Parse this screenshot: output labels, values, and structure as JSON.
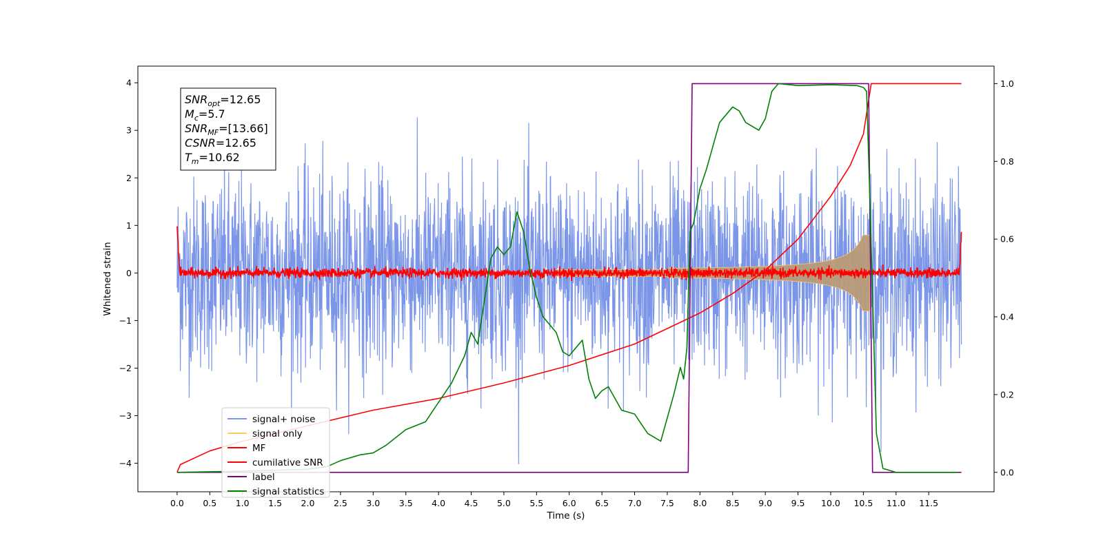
{
  "chart_data": {
    "type": "line",
    "xlabel": "Time (s)",
    "ylabel": "Whitened strain",
    "xlim": [
      -0.6,
      12.5
    ],
    "ylim": [
      -4.6,
      4.35
    ],
    "y2lim": [
      -0.05,
      1.045
    ],
    "x_ticks": [
      "0.0",
      "0.5",
      "1.0",
      "1.5",
      "2.0",
      "2.5",
      "3.0",
      "3.5",
      "4.0",
      "4.5",
      "5.0",
      "5.5",
      "6.0",
      "6.5",
      "7.0",
      "7.5",
      "8.0",
      "8.5",
      "9.0",
      "9.5",
      "10.0",
      "10.5",
      "11.0",
      "11.5"
    ],
    "y_ticks": [
      "4",
      "3",
      "2",
      "1",
      "0",
      "−1",
      "−2",
      "−3",
      "−4"
    ],
    "y2_ticks": [
      "0.0",
      "0.2",
      "0.4",
      "0.6",
      "0.8",
      "1.0"
    ],
    "grid": false,
    "legend_position": "lower-left",
    "info_box": [
      {
        "base": "SNR",
        "sub": "opt",
        "value": "=12.65"
      },
      {
        "base": "M",
        "sub": "c",
        "value": "=5.7"
      },
      {
        "base": "SNR",
        "sub": "MF",
        "value": "=[13.66]"
      },
      {
        "base": "CSNR",
        "sub": "",
        "value": "=12.65"
      },
      {
        "base": "T",
        "sub": "m",
        "value": "=10.62"
      }
    ],
    "series": [
      {
        "name": "signal+ noise",
        "color": "#7b96e8",
        "axis": "left",
        "style": "noise",
        "duration": 12.0,
        "amplitude_std": 1.0
      },
      {
        "name": "signal only",
        "color": "#ffc664",
        "axis": "left",
        "style": "chirp",
        "t_start": 7.5,
        "t_merger": 10.6,
        "max_amplitude": 0.75
      },
      {
        "name": "MF",
        "color": "#ff0000",
        "axis": "left",
        "style": "mf",
        "peak_t": 0.0,
        "peak_value": 1.0,
        "baseline_std": 0.05
      },
      {
        "name": "cumilative SNR",
        "color": "#ff0000",
        "axis": "right",
        "x": [
          0.0,
          0.05,
          0.5,
          1.0,
          2.0,
          3.0,
          4.0,
          5.0,
          6.0,
          7.0,
          7.5,
          8.0,
          8.5,
          9.0,
          9.5,
          10.0,
          10.3,
          10.5,
          10.62,
          12.0
        ],
        "y": [
          0.0,
          0.02,
          0.055,
          0.08,
          0.12,
          0.16,
          0.19,
          0.23,
          0.275,
          0.33,
          0.37,
          0.41,
          0.46,
          0.52,
          0.6,
          0.71,
          0.79,
          0.87,
          1.0,
          1.0
        ]
      },
      {
        "name": "label",
        "color": "#800080",
        "axis": "right",
        "x": [
          0.0,
          7.82,
          7.88,
          10.58,
          10.64,
          12.0
        ],
        "y": [
          0.0,
          0.0,
          1.0,
          1.0,
          0.0,
          0.0
        ]
      },
      {
        "name": "signal statistics",
        "color": "#008000",
        "axis": "right",
        "x": [
          0.0,
          1.0,
          2.0,
          2.3,
          2.5,
          2.7,
          2.8,
          3.0,
          3.2,
          3.5,
          3.8,
          4.0,
          4.2,
          4.4,
          4.5,
          4.6,
          4.8,
          4.9,
          5.0,
          5.1,
          5.2,
          5.3,
          5.4,
          5.5,
          5.6,
          5.7,
          5.8,
          5.9,
          6.0,
          6.1,
          6.2,
          6.3,
          6.4,
          6.5,
          6.6,
          6.7,
          6.8,
          7.0,
          7.2,
          7.4,
          7.6,
          7.7,
          7.75,
          7.8,
          7.85,
          7.9,
          8.0,
          8.1,
          8.2,
          8.3,
          8.5,
          8.6,
          8.7,
          8.9,
          9.0,
          9.1,
          9.2,
          9.5,
          10.0,
          10.4,
          10.5,
          10.55,
          10.6,
          10.65,
          10.7,
          10.8,
          11.0,
          11.5,
          11.95
        ],
        "y": [
          0.0,
          0.003,
          0.008,
          0.015,
          0.03,
          0.04,
          0.045,
          0.05,
          0.07,
          0.11,
          0.13,
          0.18,
          0.23,
          0.3,
          0.36,
          0.33,
          0.55,
          0.58,
          0.56,
          0.58,
          0.67,
          0.62,
          0.52,
          0.45,
          0.4,
          0.38,
          0.36,
          0.31,
          0.3,
          0.32,
          0.34,
          0.24,
          0.19,
          0.21,
          0.22,
          0.19,
          0.16,
          0.15,
          0.1,
          0.08,
          0.2,
          0.27,
          0.24,
          0.32,
          0.62,
          0.64,
          0.73,
          0.78,
          0.84,
          0.9,
          0.94,
          0.93,
          0.9,
          0.88,
          0.91,
          0.98,
          1.0,
          0.995,
          0.997,
          0.995,
          0.99,
          0.98,
          0.7,
          0.4,
          0.1,
          0.01,
          0.0,
          0.0,
          0.0
        ]
      }
    ]
  }
}
